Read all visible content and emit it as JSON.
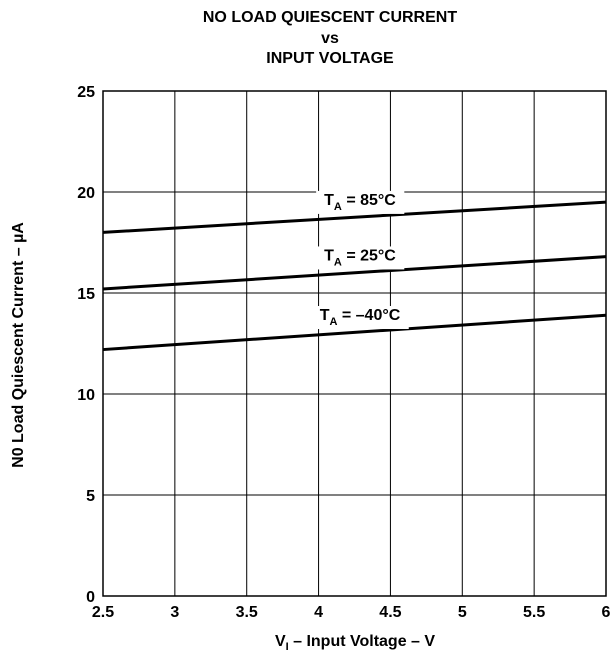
{
  "chart_data": {
    "type": "line",
    "title": "NO LOAD QUIESCENT CURRENT",
    "title_line2": "vs",
    "title_line3": "INPUT VOLTAGE",
    "xlabel": "V",
    "xlabel_sub": "I",
    "xlabel_rest": " – Input Voltage – V",
    "ylabel": "N0 Load Quiescent Current – µA",
    "xlim": [
      2.5,
      6
    ],
    "ylim": [
      0,
      25
    ],
    "x_ticks": [
      "2.5",
      "3",
      "3.5",
      "4",
      "4.5",
      "5",
      "5.5",
      "6"
    ],
    "y_ticks": [
      "0",
      "5",
      "10",
      "15",
      "20",
      "25"
    ],
    "grid": true,
    "series": [
      {
        "name_prefix": "T",
        "name_sub": "A",
        "name_suffix": " = 85°C",
        "x": [
          2.5,
          6
        ],
        "y": [
          18.0,
          19.5
        ]
      },
      {
        "name_prefix": "T",
        "name_sub": "A",
        "name_suffix": " = 25°C",
        "x": [
          2.5,
          6
        ],
        "y": [
          15.2,
          16.8
        ]
      },
      {
        "name_prefix": "T",
        "name_sub": "A",
        "name_suffix": " = –40°C",
        "x": [
          2.5,
          6
        ],
        "y": [
          12.2,
          13.9
        ]
      }
    ]
  }
}
